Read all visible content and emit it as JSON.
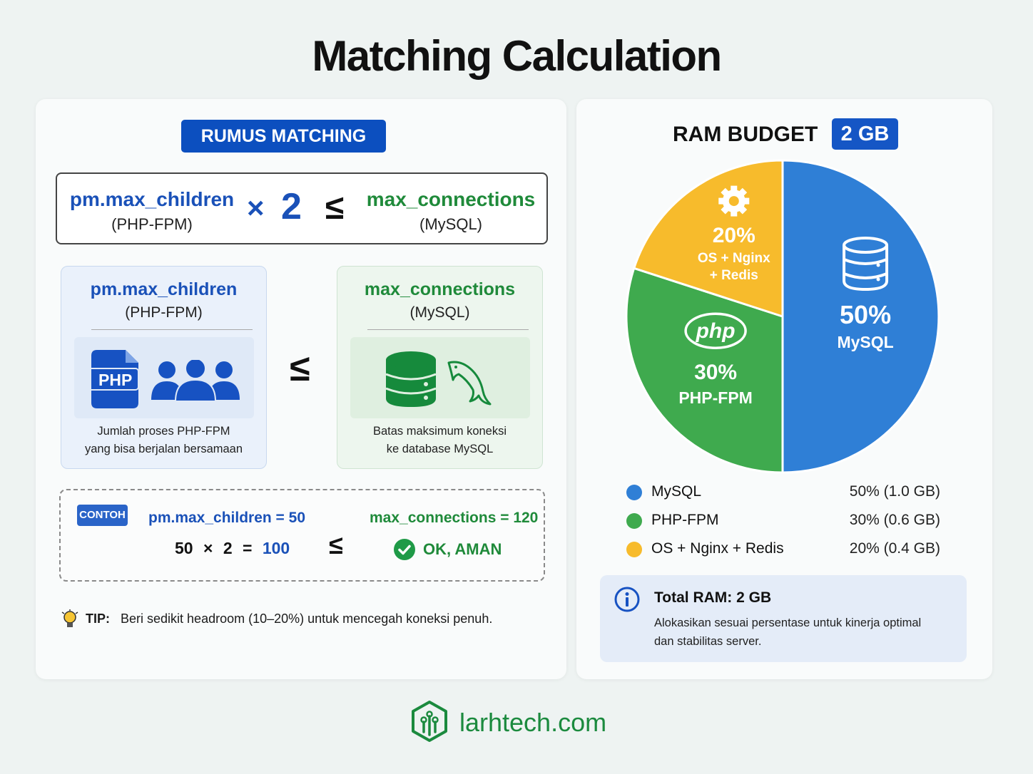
{
  "title": "Matching Calculation",
  "formula": {
    "badge": "RUMUS MATCHING",
    "left_term": "pm.max_children",
    "left_sub": "(PHP-FPM)",
    "times": "×",
    "factor": "2",
    "compare": "≤",
    "right_term": "max_connections",
    "right_sub": "(MySQL)"
  },
  "panels": {
    "php": {
      "title": "pm.max_children",
      "sub": "(PHP-FPM)",
      "icon_label": "PHP",
      "desc1": "Jumlah proses PHP-FPM",
      "desc2": "yang bisa berjalan bersamaan"
    },
    "compare": "≤",
    "mysql": {
      "title": "max_connections",
      "sub": "(MySQL)",
      "desc1": "Batas maksimum koneksi",
      "desc2": "ke database MySQL"
    }
  },
  "example": {
    "badge": "CONTOH",
    "left_label": "pm.max_children = 50",
    "calc_a": "50",
    "calc_times": "×",
    "calc_b": "2",
    "calc_eq": "=",
    "calc_result": "100",
    "compare": "≤",
    "right_label": "max_connections = 120",
    "status": "OK, AMAN"
  },
  "tip": {
    "label": "TIP:",
    "text": "Beri sedikit headroom (10–20%) untuk mencegah koneksi penuh."
  },
  "ram": {
    "title": "RAM BUDGET",
    "badge": "2 GB"
  },
  "chart_data": {
    "type": "pie",
    "title": "RAM BUDGET",
    "slices": [
      {
        "label": "MySQL",
        "value": 50,
        "pct_label": "50%",
        "color": "#2f7fd6",
        "icon": "database-icon",
        "legend_value": "50% (1.0 GB)"
      },
      {
        "label": "PHP-FPM",
        "value": 30,
        "pct_label": "30%",
        "color": "#3faa4e",
        "icon": "php-icon",
        "legend_value": "30% (0.6 GB)"
      },
      {
        "label": "OS + Nginx + Redis",
        "value": 20,
        "pct_label": "20%",
        "color": "#f7bb2c",
        "icon": "gear-icon",
        "legend_value": "20% (0.4 GB)",
        "label_line1": "OS + Nginx",
        "label_line2": "+ Redis"
      }
    ],
    "legend_position": "below"
  },
  "info": {
    "title": "Total RAM: 2 GB",
    "line1": "Alokasikan sesuai persentase untuk kinerja optimal",
    "line2": "dan stabilitas server."
  },
  "footer": {
    "brand": "larhtech.com",
    "color": "#1b8a3e"
  }
}
